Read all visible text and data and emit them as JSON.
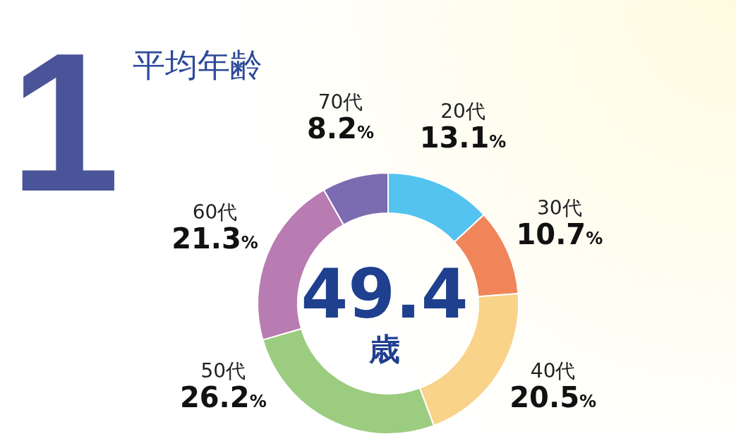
{
  "chart_data": {
    "type": "donut",
    "title": "平均年齢",
    "categories": [
      "20代",
      "30代",
      "40代",
      "50代",
      "60代",
      "70代"
    ],
    "values": [
      13.1,
      10.7,
      20.5,
      26.2,
      21.3,
      8.2
    ],
    "colors": [
      "#55c3ef",
      "#f0855a",
      "#fad38a",
      "#9ccc80",
      "#b87bb2",
      "#7b6bb0"
    ],
    "value_labels": [
      "13.1%",
      "10.7%",
      "20.5%",
      "26.2%",
      "21.3%",
      "8.2%"
    ],
    "annotations": [
      "1",
      "49.4",
      "歳"
    ]
  }
}
